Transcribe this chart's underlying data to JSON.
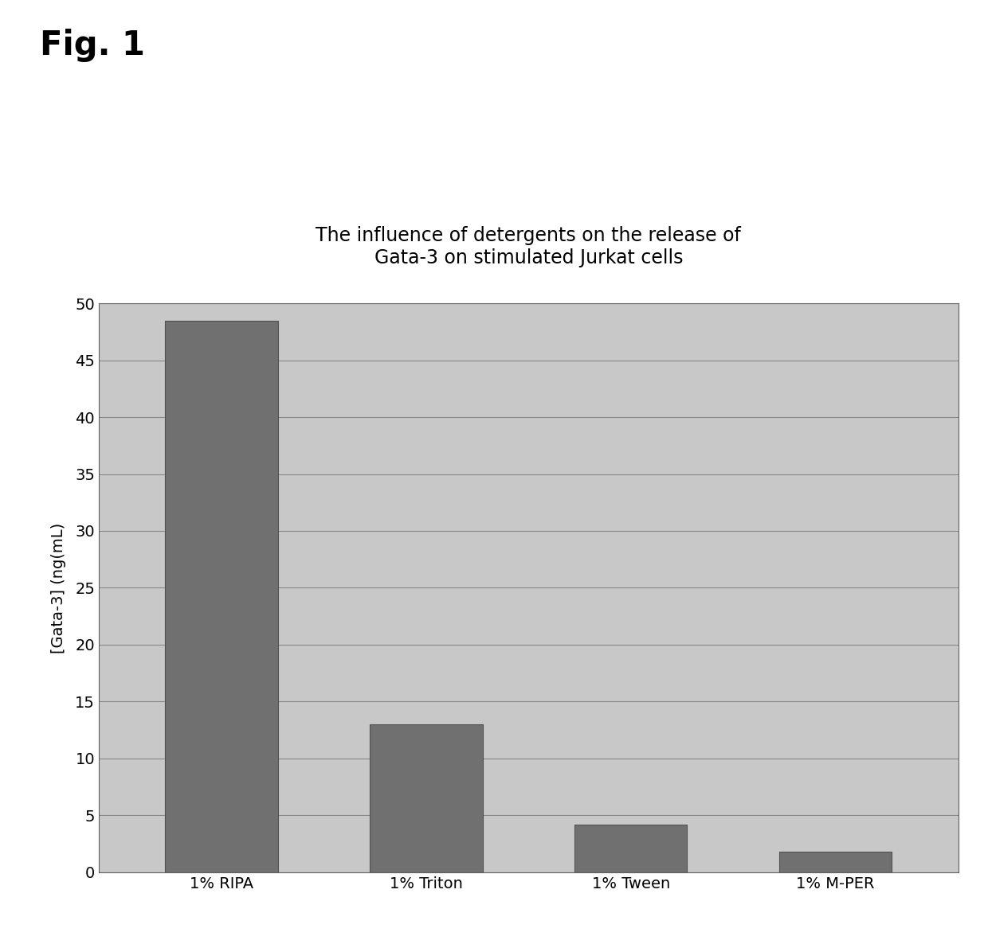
{
  "categories": [
    "1% RIPA",
    "1% Triton",
    "1% Tween",
    "1% M-PER"
  ],
  "values": [
    48.5,
    13.0,
    4.2,
    1.8
  ],
  "bar_color": "#707070",
  "bar_edge_color": "#505050",
  "plot_bg_color": "#c8c8c8",
  "title": "The influence of detergents on the release of\nGata-3 on stimulated Jurkat cells",
  "ylabel": "[Gata-3] (ng(mL)",
  "ylim": [
    0,
    50
  ],
  "yticks": [
    0,
    5,
    10,
    15,
    20,
    25,
    30,
    35,
    40,
    45,
    50
  ],
  "title_fontsize": 17,
  "label_fontsize": 14,
  "tick_fontsize": 14,
  "fig_label": "Fig. 1",
  "fig_label_fontsize": 30,
  "grid_color": "#888888",
  "outer_bg_color": "#ffffff"
}
